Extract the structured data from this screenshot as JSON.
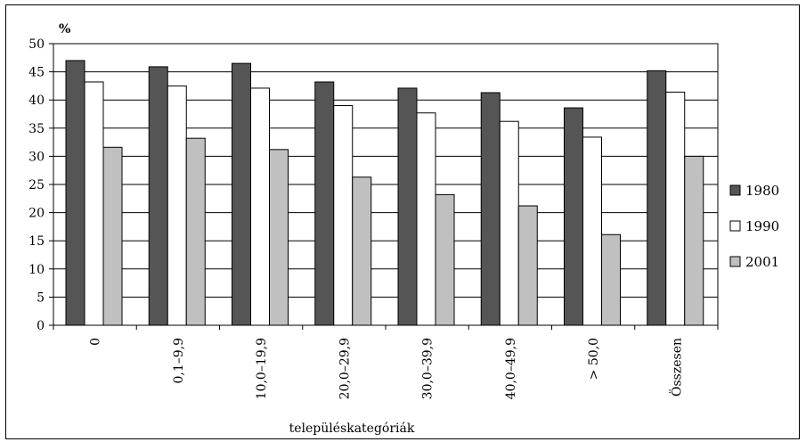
{
  "chart_data": {
    "type": "bar",
    "unit_label": "%",
    "xlabel": "településkategóriák",
    "ylim": [
      0,
      50
    ],
    "yticks": [
      0,
      5,
      10,
      15,
      20,
      25,
      30,
      35,
      40,
      45,
      50
    ],
    "grid": true,
    "legend_position": "right",
    "categories": [
      "0",
      "0,1–9,9",
      "10,0–19,9",
      "20,0–29,9",
      "30,0–39,9",
      "40,0–49,9",
      "> 50,0",
      "Összesen"
    ],
    "series": [
      {
        "name": "1980",
        "color": "#555555",
        "values": [
          47.0,
          45.9,
          46.5,
          43.2,
          42.1,
          41.3,
          38.6,
          45.2
        ]
      },
      {
        "name": "1990",
        "color": "#ffffff",
        "values": [
          43.2,
          42.5,
          42.1,
          39.0,
          37.7,
          36.2,
          33.4,
          41.4
        ]
      },
      {
        "name": "2001",
        "color": "#c0c0c0",
        "values": [
          31.6,
          33.2,
          31.2,
          26.3,
          23.2,
          21.2,
          16.1,
          30.0
        ]
      }
    ]
  }
}
